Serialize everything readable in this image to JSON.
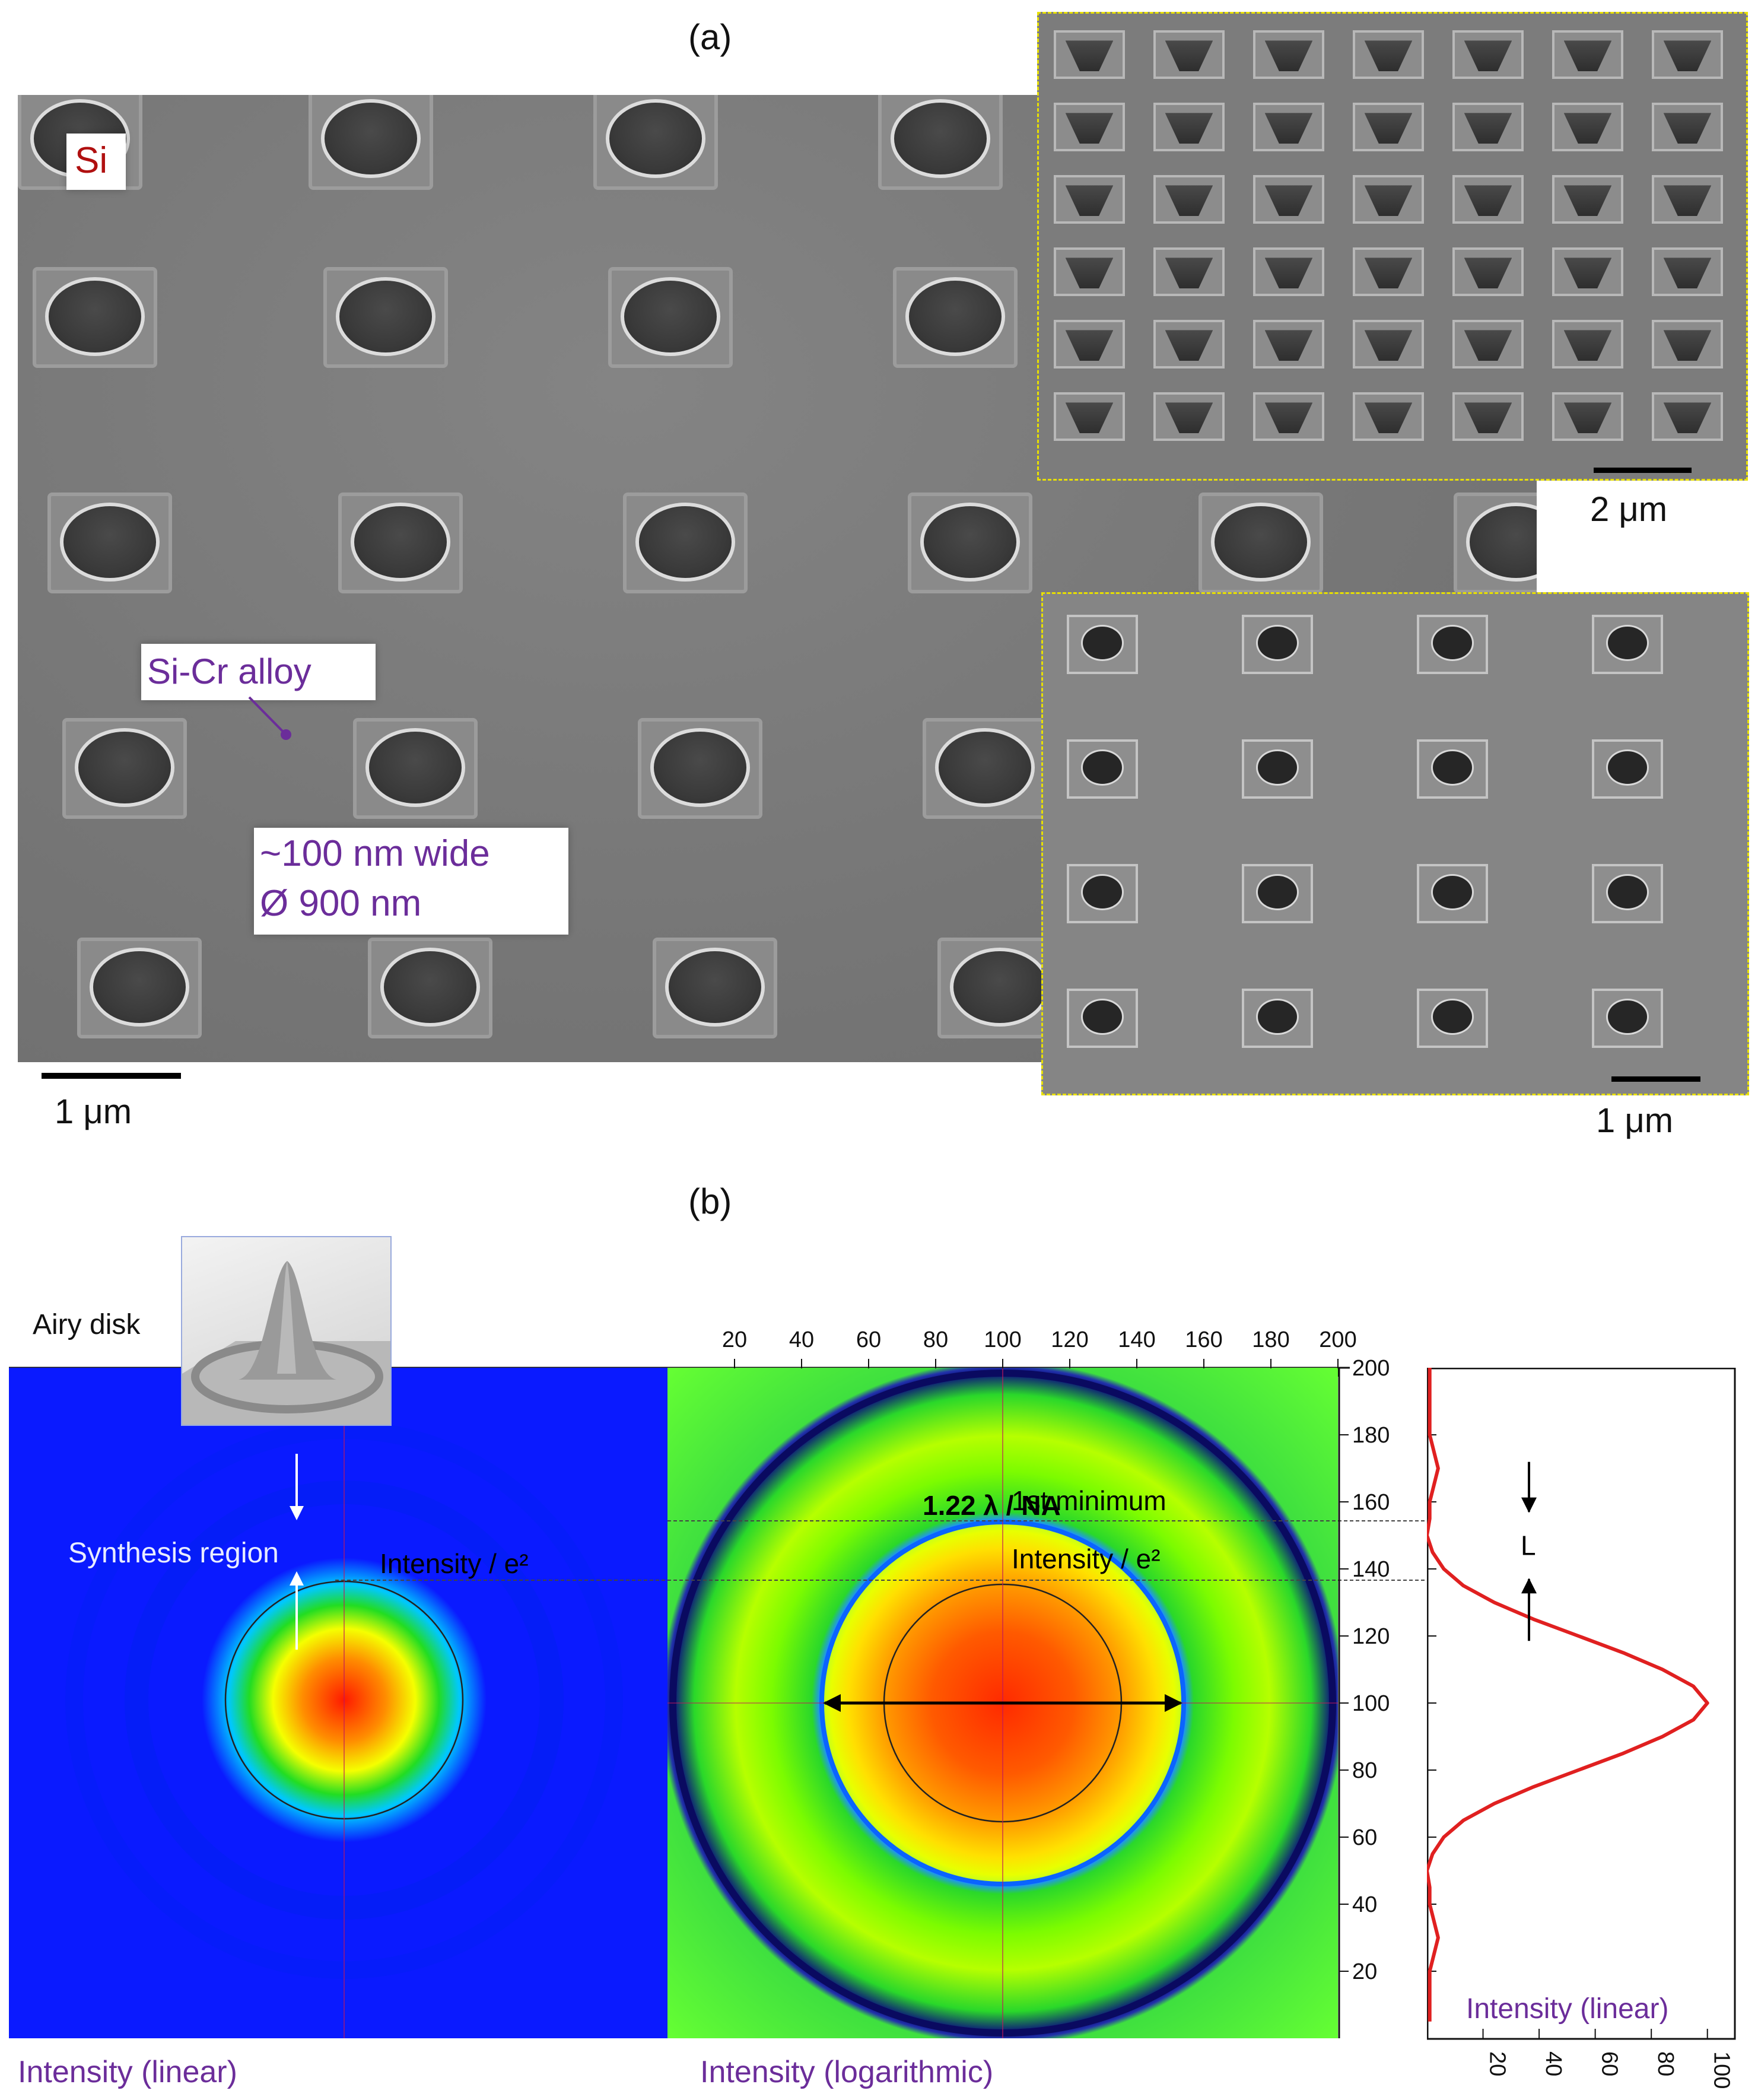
{
  "figure": {
    "panel_a_label": "(a)",
    "panel_b_label": "(b)"
  },
  "panel_a": {
    "main_image": {
      "si_label": "Si",
      "alloy_label": "Si-Cr alloy",
      "dims_line1": "~100 nm wide",
      "dims_line2": "Ø 900 nm",
      "scale_text": "1 μm"
    },
    "inset_top": {
      "scale_text": "2 μm"
    },
    "inset_bottom": {
      "scale_text": "1 μm"
    }
  },
  "panel_b": {
    "airy_label": "Airy disk",
    "synthesis_label": "Synthesis region",
    "left_intensity_label": "Intensity / e²",
    "first_min_label": "1st minimum",
    "right_intensity_label": "Intensity / e²",
    "diameter_label": "1.22 λ / NA",
    "L_label": "L",
    "caption_left": "Intensity (linear)",
    "caption_middle": "Intensity (logarithmic)",
    "caption_profile": "Intensity (linear)",
    "colors": {
      "blue_bg": "#0a1aff",
      "green": "#22dd22",
      "red": "#ff1a00",
      "profile_line": "#e02020"
    }
  },
  "chart_data": [
    {
      "type": "heatmap",
      "title": "",
      "x_ticks": [
        20,
        40,
        60,
        80,
        100,
        120,
        140,
        160,
        180,
        200
      ],
      "y_ticks": [
        20,
        40,
        60,
        80,
        100,
        120,
        140,
        160,
        180,
        200
      ],
      "xlim": [
        0,
        200
      ],
      "ylim": [
        0,
        200
      ],
      "center": [
        100,
        100
      ],
      "e2_radius": 38,
      "first_min_radius": 55,
      "xlabel": "",
      "ylabel": "",
      "colorbar": "Intensity (logarithmic)"
    },
    {
      "type": "line",
      "title": "",
      "xlabel": "Intensity (linear)",
      "ylabel": "",
      "x_ticks": [
        20,
        40,
        60,
        80,
        100
      ],
      "xlim": [
        0,
        110
      ],
      "ylim": [
        0,
        200
      ],
      "profile": {
        "y": [
          5,
          20,
          30,
          40,
          45,
          50,
          55,
          60,
          65,
          70,
          75,
          80,
          85,
          90,
          95,
          100,
          105,
          110,
          115,
          120,
          125,
          130,
          135,
          140,
          145,
          150,
          155,
          160,
          170,
          180,
          190,
          200
        ],
        "x": [
          1,
          1,
          4,
          1,
          1,
          0,
          2,
          6,
          13,
          24,
          38,
          54,
          70,
          84,
          95,
          100,
          95,
          84,
          70,
          54,
          38,
          24,
          13,
          6,
          2,
          0,
          1,
          1,
          4,
          1,
          1,
          1
        ]
      }
    }
  ]
}
